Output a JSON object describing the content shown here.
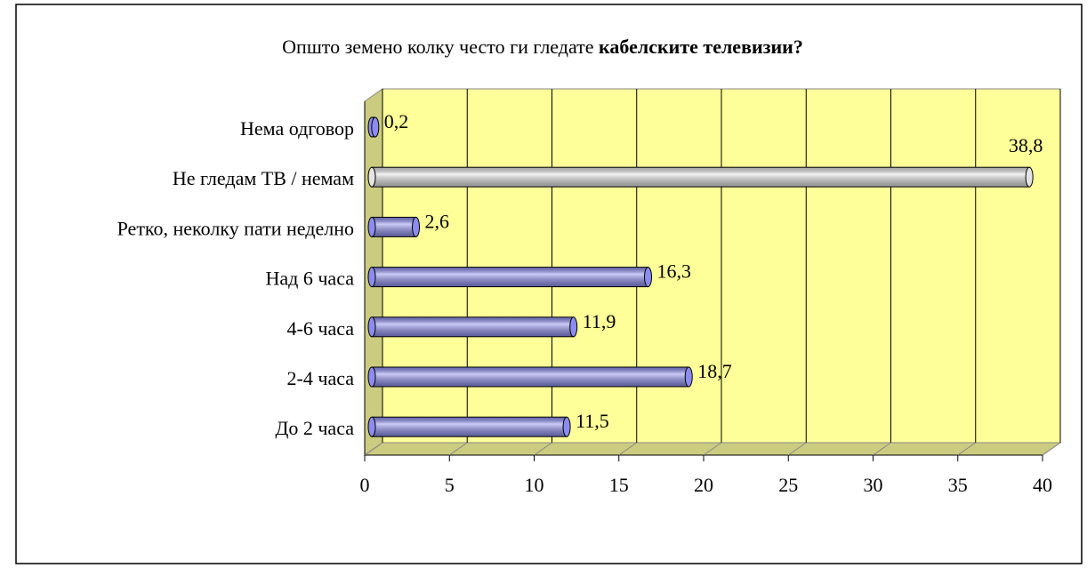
{
  "chart_data": {
    "type": "bar",
    "orientation": "horizontal",
    "title": [
      "Општо земено колку често ги гледате",
      "кабелските телевизии?"
    ],
    "categories": [
      "Нема одговор",
      "Не гледам ТВ / немам",
      "Ретко, неколку пати неделно",
      "Над 6 часа",
      "4-6 часа",
      "2-4 часа",
      "До 2 часа"
    ],
    "values": [
      0.2,
      38.8,
      2.6,
      16.3,
      11.9,
      18.7,
      11.5
    ],
    "value_labels": [
      "0,2",
      "38,8",
      "2,6",
      "16,3",
      "11,9",
      "18,7",
      "11,5"
    ],
    "colors": [
      "#8c8cf0",
      "#e4e4e4",
      "#8c8cf0",
      "#8c8cf0",
      "#8c8cf0",
      "#8c8cf0",
      "#8c8cf0"
    ],
    "xlim": [
      0,
      40
    ],
    "xticks": [
      0,
      5,
      10,
      15,
      20,
      25,
      30,
      35,
      40
    ],
    "grid": true
  }
}
